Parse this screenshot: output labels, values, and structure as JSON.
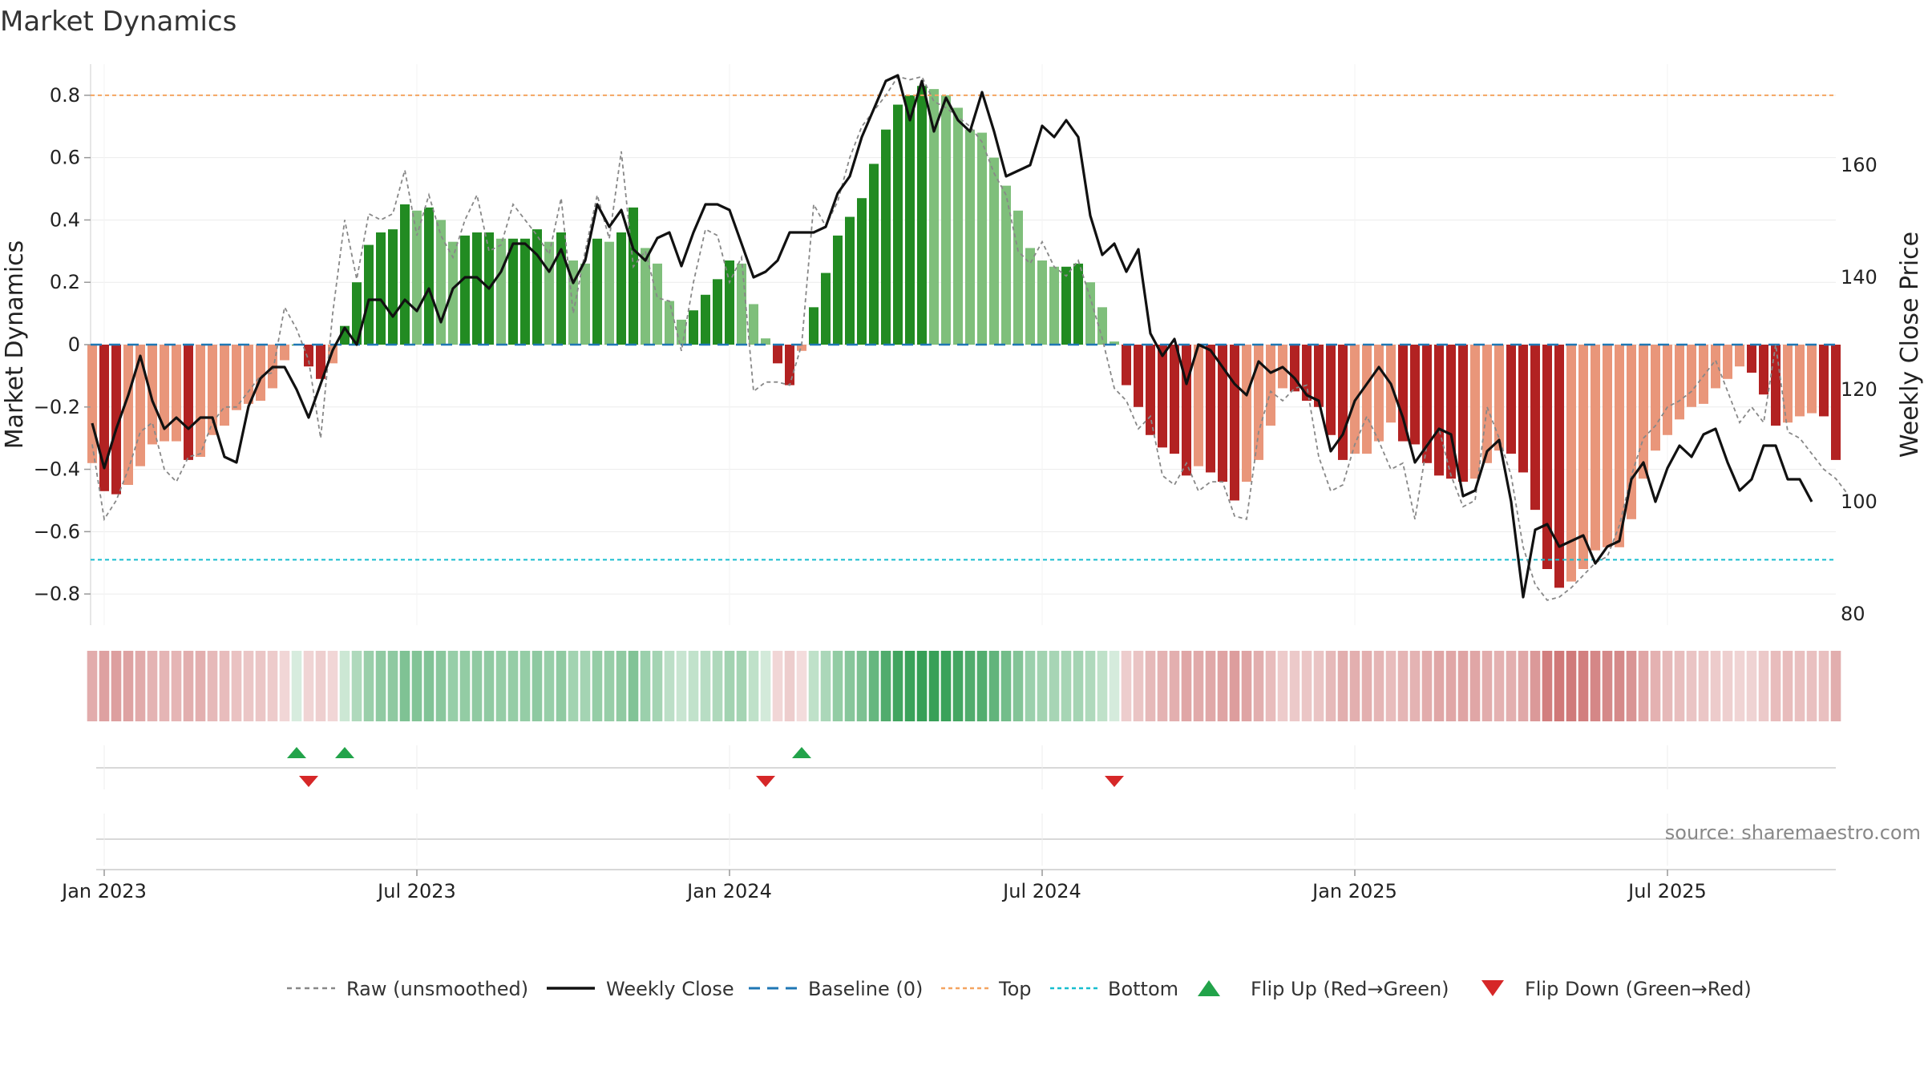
{
  "chart_data": {
    "type": "bar",
    "title": "Market Dynamics",
    "ylabel": "Market Dynamics",
    "y2label": "Weekly Close Price",
    "ylim": [
      -0.9,
      0.9
    ],
    "y2lim": [
      78,
      178
    ],
    "yticks": [
      -0.8,
      -0.6,
      -0.4,
      -0.2,
      0,
      0.2,
      0.4,
      0.6,
      0.8
    ],
    "ytick_labels": [
      "−0.8",
      "−0.6",
      "−0.4",
      "−0.2",
      "0",
      "0.2",
      "0.4",
      "0.6",
      "0.8"
    ],
    "y2ticks": [
      80,
      100,
      120,
      140,
      160
    ],
    "y2tick_labels": [
      "80",
      "100",
      "120",
      "140",
      "160"
    ],
    "x_tick_labels": [
      "Jan 2023",
      "Jul 2023",
      "Jan 2024",
      "Jul 2024",
      "Jan 2025",
      "Jul 2025"
    ],
    "x_tick_positions": [
      1,
      27,
      53,
      79,
      105,
      131
    ],
    "top_threshold": 0.8,
    "bottom_threshold": -0.69,
    "flip_up_weeks": [
      17,
      21,
      59
    ],
    "flip_down_weeks": [
      18,
      56,
      85
    ],
    "smoothed": [
      -0.38,
      -0.47,
      -0.48,
      -0.45,
      -0.39,
      -0.32,
      -0.31,
      -0.31,
      -0.37,
      -0.36,
      -0.29,
      -0.26,
      -0.21,
      -0.19,
      -0.18,
      -0.14,
      -0.05,
      0.0,
      -0.07,
      -0.11,
      -0.06,
      0.06,
      0.2,
      0.32,
      0.36,
      0.37,
      0.45,
      0.43,
      0.44,
      0.4,
      0.33,
      0.35,
      0.36,
      0.36,
      0.34,
      0.34,
      0.34,
      0.37,
      0.33,
      0.36,
      0.27,
      0.26,
      0.34,
      0.33,
      0.36,
      0.44,
      0.31,
      0.26,
      0.14,
      0.08,
      0.11,
      0.16,
      0.21,
      0.27,
      0.26,
      0.13,
      0.02,
      -0.06,
      -0.13,
      -0.02,
      0.12,
      0.23,
      0.35,
      0.41,
      0.47,
      0.58,
      0.69,
      0.77,
      0.8,
      0.83,
      0.82,
      0.8,
      0.76,
      0.69,
      0.68,
      0.6,
      0.51,
      0.43,
      0.31,
      0.27,
      0.25,
      0.25,
      0.26,
      0.2,
      0.12,
      0.01,
      -0.13,
      -0.2,
      -0.29,
      -0.33,
      -0.35,
      -0.42,
      -0.39,
      -0.41,
      -0.44,
      -0.5,
      -0.44,
      -0.37,
      -0.26,
      -0.14,
      -0.15,
      -0.18,
      -0.2,
      -0.29,
      -0.37,
      -0.35,
      -0.35,
      -0.31,
      -0.25,
      -0.31,
      -0.32,
      -0.38,
      -0.42,
      -0.43,
      -0.44,
      -0.43,
      -0.38,
      -0.34,
      -0.35,
      -0.41,
      -0.53,
      -0.72,
      -0.78,
      -0.76,
      -0.72,
      -0.66,
      -0.65,
      -0.65,
      -0.56,
      -0.43,
      -0.34,
      -0.29,
      -0.24,
      -0.2,
      -0.19,
      -0.14,
      -0.11,
      -0.07,
      -0.09,
      -0.16,
      -0.26,
      -0.25,
      -0.23,
      -0.22,
      -0.23,
      -0.37
    ],
    "raw": [
      -0.32,
      -0.56,
      -0.5,
      -0.4,
      -0.28,
      -0.25,
      -0.4,
      -0.44,
      -0.36,
      -0.35,
      -0.25,
      -0.2,
      -0.2,
      -0.15,
      -0.1,
      -0.09,
      0.12,
      0.05,
      -0.05,
      -0.3,
      0.1,
      0.4,
      0.21,
      0.42,
      0.4,
      0.42,
      0.56,
      0.35,
      0.48,
      0.35,
      0.28,
      0.4,
      0.48,
      0.3,
      0.32,
      0.45,
      0.4,
      0.35,
      0.29,
      0.47,
      0.1,
      0.3,
      0.48,
      0.34,
      0.62,
      0.25,
      0.3,
      0.15,
      0.14,
      -0.02,
      0.2,
      0.37,
      0.35,
      0.2,
      0.28,
      -0.15,
      -0.12,
      -0.12,
      -0.13,
      0.0,
      0.45,
      0.38,
      0.46,
      0.6,
      0.7,
      0.75,
      0.8,
      0.86,
      0.85,
      0.86,
      0.78,
      0.76,
      0.73,
      0.7,
      0.65,
      0.55,
      0.48,
      0.3,
      0.26,
      0.33,
      0.25,
      0.22,
      0.27,
      0.15,
      0.02,
      -0.14,
      -0.18,
      -0.27,
      -0.23,
      -0.42,
      -0.45,
      -0.38,
      -0.47,
      -0.44,
      -0.44,
      -0.55,
      -0.56,
      -0.28,
      -0.15,
      -0.18,
      -0.14,
      -0.13,
      -0.36,
      -0.47,
      -0.45,
      -0.32,
      -0.23,
      -0.31,
      -0.4,
      -0.38,
      -0.56,
      -0.32,
      -0.27,
      -0.42,
      -0.52,
      -0.5,
      -0.2,
      -0.3,
      -0.42,
      -0.65,
      -0.77,
      -0.82,
      -0.81,
      -0.78,
      -0.74,
      -0.7,
      -0.68,
      -0.58,
      -0.42,
      -0.3,
      -0.26,
      -0.2,
      -0.18,
      -0.15,
      -0.1,
      -0.05,
      -0.15,
      -0.25,
      -0.2,
      -0.25,
      0.0,
      -0.28,
      -0.3,
      -0.35,
      -0.4,
      -0.43,
      -0.48
    ],
    "weekly_close": [
      114,
      106,
      113,
      119,
      126,
      118,
      113,
      115,
      113,
      115,
      115,
      108,
      107,
      117,
      122,
      124,
      124,
      120,
      115,
      121,
      127,
      131,
      128,
      136,
      136,
      133,
      136,
      134,
      138,
      132,
      138,
      140,
      140,
      138,
      141,
      146,
      146,
      144,
      141,
      145,
      139,
      143,
      153,
      149,
      152,
      145,
      143,
      147,
      148,
      142,
      148,
      153,
      153,
      152,
      146,
      140,
      141,
      143,
      148,
      148,
      148,
      149,
      155,
      158,
      165,
      170,
      175,
      176,
      168,
      175,
      166,
      172,
      168,
      166,
      173,
      166,
      158,
      159,
      160,
      167,
      165,
      168,
      165,
      151,
      144,
      146,
      141,
      145,
      130,
      126,
      129,
      121,
      128,
      127,
      124,
      121,
      119,
      125,
      123,
      124,
      122,
      119,
      118,
      109,
      112,
      118,
      121,
      124,
      121,
      115,
      107,
      110,
      113,
      112,
      101,
      102,
      109,
      111,
      100,
      83,
      95,
      96,
      92,
      93,
      94,
      89,
      92,
      93,
      104,
      107,
      100,
      106,
      110,
      108,
      112,
      113,
      107,
      102,
      104,
      110,
      110,
      104,
      104,
      100
    ]
  },
  "legend": {
    "raw": "Raw (unsmoothed)",
    "close": "Weekly Close",
    "baseline": "Baseline (0)",
    "top": "Top",
    "bottom": "Bottom",
    "flip_up": "Flip Up (Red→Green)",
    "flip_down": "Flip Down (Green→Red)"
  },
  "source": "source: sharemaestro.com",
  "colors": {
    "green_strong": "#228b22",
    "green_soft": "#7fbf7b",
    "red_strong": "#b22222",
    "red_soft": "#e9967a",
    "close_line": "#111111",
    "raw_line": "#888888",
    "baseline": "#1f77b4",
    "top": "#f4a460",
    "bottom": "#17becf",
    "flip_up": "#22a34a",
    "flip_down": "#d62728"
  }
}
